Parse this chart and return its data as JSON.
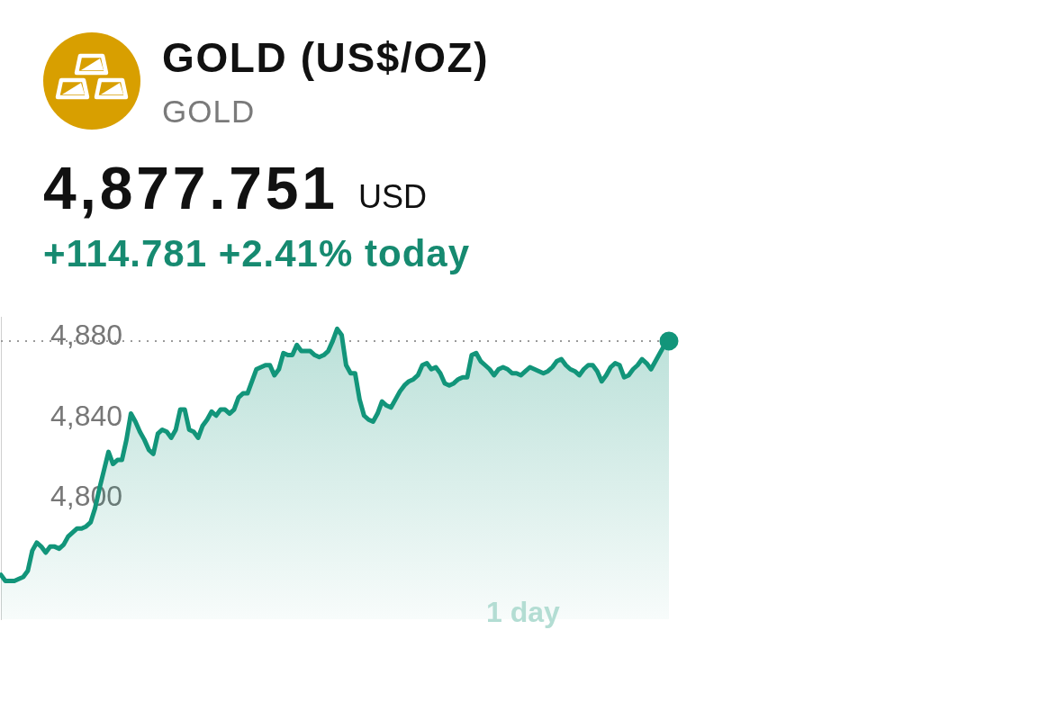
{
  "chart_data": {
    "type": "area",
    "title": "GOLD (US$/OZ)",
    "subtitle": "GOLD",
    "annotations": [
      "4,877.751",
      "USD",
      "+114.781 +2.41% today",
      "1 day"
    ],
    "categories": [
      null,
      null,
      null,
      null,
      null,
      null,
      null,
      null,
      null,
      null,
      null,
      null,
      null,
      null,
      null,
      null,
      null,
      null,
      null,
      null,
      null,
      null,
      null,
      null,
      null,
      null,
      null,
      null,
      null,
      null,
      null,
      null,
      null,
      null,
      null,
      null,
      null,
      null,
      null,
      null,
      null,
      null,
      null,
      null,
      null,
      null,
      null,
      null,
      null,
      null,
      null,
      null,
      null,
      null,
      null,
      null,
      null,
      null,
      null,
      null,
      null,
      null,
      null,
      null,
      null,
      null,
      null,
      null,
      null,
      null,
      null,
      null,
      null,
      null,
      null,
      null,
      null,
      null,
      null,
      null,
      null,
      null,
      null,
      null,
      null,
      null,
      null,
      null,
      null,
      null,
      null,
      null,
      null,
      null,
      null,
      null,
      null,
      null,
      null,
      null,
      null,
      null,
      null,
      null,
      null,
      null,
      null,
      null,
      null,
      null,
      null,
      null,
      null,
      null,
      null,
      null,
      null,
      null,
      null,
      null,
      null,
      null,
      null,
      null,
      null,
      null,
      null,
      null,
      null,
      null,
      null,
      null,
      null,
      null,
      null,
      null,
      null,
      null,
      null,
      null,
      null,
      null,
      null,
      null,
      null,
      null,
      null,
      null,
      null,
      null
    ],
    "values": [
      4762,
      4759,
      4759,
      4759,
      4760,
      4761,
      4764,
      4774,
      4778,
      4776,
      4773,
      4776,
      4776,
      4775,
      4777,
      4781,
      4783,
      4785,
      4785,
      4786,
      4788,
      4795,
      4805,
      4814,
      4823,
      4817,
      4819,
      4819,
      4829,
      4842,
      4838,
      4833,
      4829,
      4824,
      4822,
      4832,
      4834,
      4833,
      4830,
      4834,
      4844,
      4844,
      4834,
      4833,
      4830,
      4836,
      4839,
      4843,
      4841,
      4844,
      4844,
      4842,
      4844,
      4850,
      4852,
      4852,
      4858,
      4864,
      4865,
      4866,
      4866,
      4861,
      4864,
      4872,
      4871,
      4871,
      4876,
      4873,
      4873,
      4873,
      4871,
      4870,
      4871,
      4873,
      4878,
      4884,
      4881,
      4866,
      4862,
      4862,
      4849,
      4841,
      4839,
      4838,
      4842,
      4848,
      4846,
      4845,
      4849,
      4853,
      4856,
      4858,
      4859,
      4861,
      4866,
      4867,
      4864,
      4865,
      4862,
      4857,
      4856,
      4857,
      4859,
      4860,
      4860,
      4871,
      4872,
      4868,
      4866,
      4864,
      4861,
      4864,
      4865,
      4864,
      4862,
      4862,
      4861,
      4863,
      4865,
      4864,
      4863,
      4862,
      4863,
      4865,
      4868,
      4869,
      4866,
      4864,
      4863,
      4861,
      4864,
      4866,
      4866,
      4863,
      4858,
      4861,
      4865,
      4867,
      4866,
      4860,
      4861,
      4864,
      4866,
      4869,
      4867,
      4864,
      4868,
      4872,
      4876,
      4878
    ],
    "color": "#12957a",
    "ylim": [
      4740,
      4890
    ],
    "yticks": [
      {
        "value": 4800,
        "label": "4,800"
      },
      {
        "value": 4840,
        "label": "4,840"
      },
      {
        "value": 4880,
        "label": "4,880"
      }
    ],
    "ref_lines": [
      {
        "axis": "y",
        "value": 4878,
        "color": "#9a9a9a",
        "line_style": "dotted"
      }
    ],
    "tick_labels": "y"
  }
}
